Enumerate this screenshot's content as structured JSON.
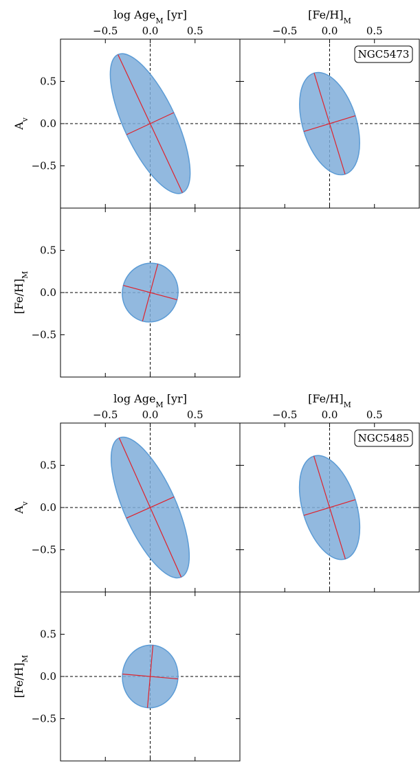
{
  "chart_data": [
    {
      "type": "scatter",
      "name": "NGC5473",
      "tag": "NGC5473",
      "axis_labels": {
        "top_left": "log Age_M [yr]",
        "top_right": "[Fe/H]_M",
        "left_top": "A_v",
        "left_bottom": "[Fe/H]_M"
      },
      "ticks": [
        -0.5,
        0.0,
        0.5
      ],
      "tick_labels": [
        "−0.5",
        "0.0",
        "0.5"
      ],
      "xlim": [
        -1.0,
        1.0
      ],
      "ylim": [
        -1.0,
        1.0
      ],
      "panels": [
        {
          "id": "age-vs-av",
          "x_quantity": "log Age_M",
          "y_quantity": "A_v",
          "ellipse": {
            "cx": 0.0,
            "cy": 0.0,
            "major": 0.85,
            "minor": 0.29,
            "angle_deg": 115
          }
        },
        {
          "id": "feh-vs-av",
          "x_quantity": "[Fe/H]_M",
          "y_quantity": "A_v",
          "ellipse": {
            "cx": 0.0,
            "cy": 0.0,
            "major": 0.59,
            "minor": 0.3,
            "angle_deg": 107
          }
        },
        {
          "id": "age-vs-feh",
          "x_quantity": "log Age_M",
          "y_quantity": "[Fe/H]_M",
          "ellipse": {
            "cx": 0.0,
            "cy": 0.0,
            "major": 0.33,
            "minor": 0.31,
            "angle_deg": 75
          }
        }
      ]
    },
    {
      "type": "scatter",
      "name": "NGC5485",
      "tag": "NGC5485",
      "axis_labels": {
        "top_left": "log Age_M [yr]",
        "top_right": "[Fe/H]_M",
        "left_top": "A_v",
        "left_bottom": "[Fe/H]_M"
      },
      "ticks": [
        -0.5,
        0.0,
        0.5
      ],
      "tick_labels": [
        "−0.5",
        "0.0",
        "0.5"
      ],
      "xlim": [
        -1.0,
        1.0
      ],
      "ylim": [
        -1.0,
        1.0
      ],
      "panels": [
        {
          "id": "age-vs-av",
          "x_quantity": "log Age_M",
          "y_quantity": "A_v",
          "ellipse": {
            "cx": 0.0,
            "cy": 0.0,
            "major": 0.85,
            "minor": 0.29,
            "angle_deg": 114
          }
        },
        {
          "id": "feh-vs-av",
          "x_quantity": "[Fe/H]_M",
          "y_quantity": "A_v",
          "ellipse": {
            "cx": 0.0,
            "cy": 0.0,
            "major": 0.6,
            "minor": 0.3,
            "angle_deg": 107
          }
        },
        {
          "id": "age-vs-feh",
          "x_quantity": "log Age_M",
          "y_quantity": "[Fe/H]_M",
          "ellipse": {
            "cx": 0.0,
            "cy": 0.0,
            "major": 0.35,
            "minor": 0.31,
            "angle_deg": 85
          }
        }
      ]
    }
  ],
  "colors": {
    "ellipse_fill": "#7fadd9",
    "ellipse_edge": "#5b9bd5",
    "principal_axes": "#e0202a",
    "frame": "#000000"
  }
}
